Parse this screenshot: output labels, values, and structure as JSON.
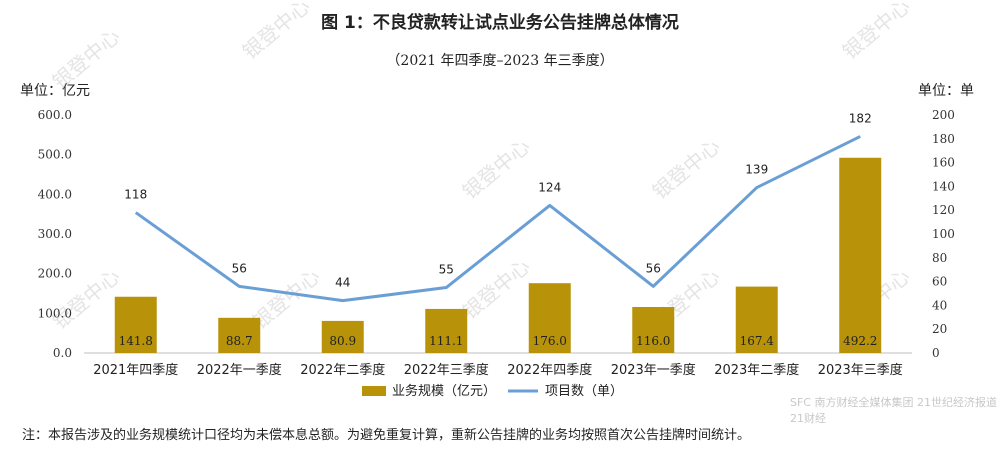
{
  "chart_data": {
    "type": "bar",
    "title": "图 1：不良贷款转让试点业务公告挂牌总体情况",
    "subtitle": "（2021 年四季度–2023 年三季度）",
    "ylabel_left": "单位：亿元",
    "ylabel_right": "单位：单",
    "categories": [
      "2021年四季度",
      "2022年一季度",
      "2022年二季度",
      "2022年三季度",
      "2022年四季度",
      "2023年一季度",
      "2023年二季度",
      "2023年三季度"
    ],
    "series": [
      {
        "name": "业务规模（亿元）",
        "type": "bar",
        "axis": "left",
        "color": "#B8930A",
        "values": [
          141.8,
          88.7,
          80.9,
          111.1,
          176.0,
          116.0,
          167.4,
          492.2
        ],
        "labels": [
          "141.8",
          "88.7",
          "80.9",
          "111.1",
          "176.0",
          "116.0",
          "167.4",
          "492.2"
        ]
      },
      {
        "name": "项目数（单）",
        "type": "line",
        "axis": "right",
        "color": "#6A9FD6",
        "values": [
          118,
          56,
          44,
          55,
          124,
          56,
          139,
          182
        ],
        "labels": [
          "118",
          "56",
          "44",
          "55",
          "124",
          "56",
          "139",
          "182"
        ]
      }
    ],
    "left_axis": {
      "ylim": [
        0,
        600
      ],
      "ticks": [
        "0.0",
        "100.0",
        "200.0",
        "300.0",
        "400.0",
        "500.0",
        "600.0"
      ]
    },
    "right_axis": {
      "ylim": [
        0,
        200
      ],
      "ticks": [
        "0",
        "20",
        "40",
        "60",
        "80",
        "100",
        "120",
        "140",
        "160",
        "180",
        "200"
      ]
    },
    "legend_position": "bottom",
    "grid": false
  },
  "note": "注：本报告涉及的业务规模统计口径均为未偿本息总额。为避免重复计算，重新公告挂牌的业务均按照首次公告挂牌时间统计。",
  "watermark": "银登中心",
  "corner_watermark": "SFC 南方财经全媒体集团 21世纪经济报道 21财经"
}
